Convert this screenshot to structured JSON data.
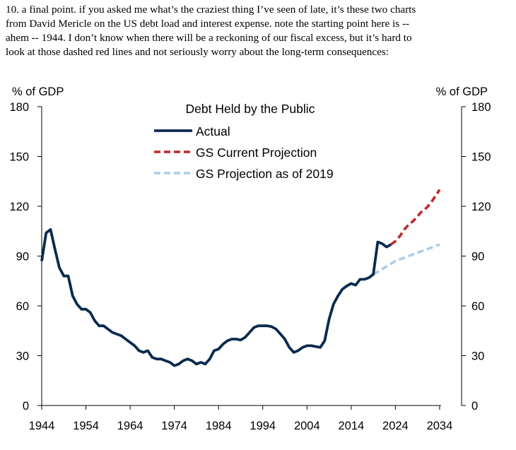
{
  "intro": {
    "lines": [
      "10. a final point.  if you asked me what’s the craziest thing I’ve seen of late, it’s these two charts",
      "from David Mericle on the US debt load and interest expense.  note the starting point here is --",
      "ahem -- 1944.  I don’t know when there will be a reckoning of our fiscal excess, but it’s hard to",
      "look at those dashed red lines and not seriously worry about the long-term consequences:"
    ]
  },
  "chart_data": {
    "type": "line",
    "title": "Debt Held by the Public",
    "ylabel_left": "% of GDP",
    "ylabel_right": "% of GDP",
    "xlim": [
      1944,
      2034
    ],
    "ylim": [
      0,
      180
    ],
    "x_ticks": [
      1944,
      1954,
      1964,
      1974,
      1984,
      1994,
      2004,
      2014,
      2024,
      2034
    ],
    "y_ticks": [
      0,
      30,
      60,
      90,
      120,
      150,
      180
    ],
    "grid": false,
    "legend_position": "top-center",
    "series": [
      {
        "name": "Actual",
        "style": "solid",
        "color": "#0b2a4f",
        "points": [
          [
            1944,
            87
          ],
          [
            1945,
            104
          ],
          [
            1946,
            106
          ],
          [
            1947,
            94
          ],
          [
            1948,
            83
          ],
          [
            1949,
            78
          ],
          [
            1950,
            78
          ],
          [
            1951,
            66
          ],
          [
            1952,
            61
          ],
          [
            1953,
            58
          ],
          [
            1954,
            58
          ],
          [
            1955,
            56
          ],
          [
            1956,
            51
          ],
          [
            1957,
            48
          ],
          [
            1958,
            48
          ],
          [
            1959,
            46
          ],
          [
            1960,
            44
          ],
          [
            1961,
            43
          ],
          [
            1962,
            42
          ],
          [
            1963,
            40
          ],
          [
            1964,
            38
          ],
          [
            1965,
            36
          ],
          [
            1966,
            33
          ],
          [
            1967,
            32
          ],
          [
            1968,
            33
          ],
          [
            1969,
            29
          ],
          [
            1970,
            28
          ],
          [
            1971,
            28
          ],
          [
            1972,
            27
          ],
          [
            1973,
            26
          ],
          [
            1974,
            24
          ],
          [
            1975,
            25
          ],
          [
            1976,
            27
          ],
          [
            1977,
            28
          ],
          [
            1978,
            27
          ],
          [
            1979,
            25
          ],
          [
            1980,
            26
          ],
          [
            1981,
            25
          ],
          [
            1982,
            28
          ],
          [
            1983,
            33
          ],
          [
            1984,
            34
          ],
          [
            1985,
            37
          ],
          [
            1986,
            39
          ],
          [
            1987,
            40
          ],
          [
            1988,
            40
          ],
          [
            1989,
            39.5
          ],
          [
            1990,
            41
          ],
          [
            1991,
            44
          ],
          [
            1992,
            47
          ],
          [
            1993,
            48
          ],
          [
            1994,
            48
          ],
          [
            1995,
            48
          ],
          [
            1996,
            47.5
          ],
          [
            1997,
            46
          ],
          [
            1998,
            43
          ],
          [
            1999,
            40
          ],
          [
            2000,
            35
          ],
          [
            2001,
            32
          ],
          [
            2002,
            33
          ],
          [
            2003,
            35
          ],
          [
            2004,
            36
          ],
          [
            2005,
            36
          ],
          [
            2006,
            35.5
          ],
          [
            2007,
            35
          ],
          [
            2008,
            39
          ],
          [
            2009,
            52
          ],
          [
            2010,
            61
          ],
          [
            2011,
            66
          ],
          [
            2012,
            70
          ],
          [
            2013,
            72
          ],
          [
            2014,
            73.5
          ],
          [
            2015,
            72.5
          ],
          [
            2016,
            76
          ],
          [
            2017,
            76
          ],
          [
            2018,
            77
          ],
          [
            2019,
            79
          ],
          [
            2020,
            98.5
          ],
          [
            2021,
            97.5
          ],
          [
            2022,
            95.5
          ],
          [
            2023,
            97
          ]
        ]
      },
      {
        "name": "GS Current Projection",
        "style": "dashed",
        "color": "#c0282d",
        "points": [
          [
            2023,
            97
          ],
          [
            2024,
            99
          ],
          [
            2025,
            102
          ],
          [
            2026,
            106
          ],
          [
            2027,
            109
          ],
          [
            2028,
            111
          ],
          [
            2029,
            114
          ],
          [
            2030,
            117
          ],
          [
            2031,
            119
          ],
          [
            2032,
            122
          ],
          [
            2033,
            126
          ],
          [
            2034,
            130
          ]
        ]
      },
      {
        "name": "GS Projection as of 2019",
        "style": "dashed",
        "color": "#a9cdea",
        "points": [
          [
            2019,
            79
          ],
          [
            2024,
            87
          ],
          [
            2029,
            92
          ],
          [
            2034,
            97
          ]
        ]
      }
    ]
  }
}
